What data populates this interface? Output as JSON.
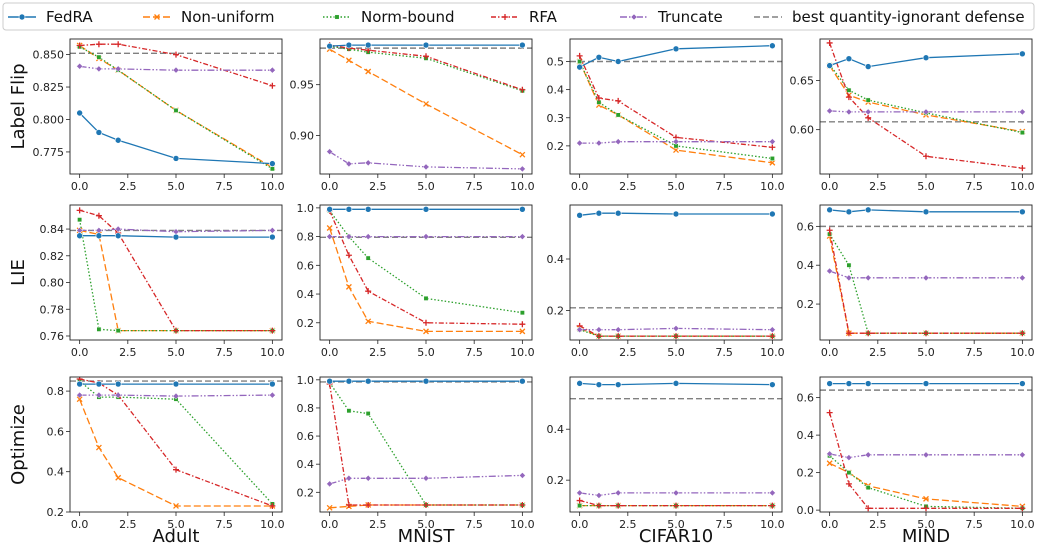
{
  "legend": {
    "entries": [
      {
        "label": "FedRA",
        "color": "#1f77b4",
        "dash": "",
        "marker": "circle"
      },
      {
        "label": "Non-uniform",
        "color": "#ff7f0e",
        "dash": "7,3",
        "marker": "x"
      },
      {
        "label": "Norm-bound",
        "color": "#2ca02c",
        "dash": "1.5,2",
        "marker": "square"
      },
      {
        "label": "RFA",
        "color": "#d62728",
        "dash": "5,2,1.5,2",
        "marker": "plus"
      },
      {
        "label": "Truncate",
        "color": "#9467bd",
        "dash": "7,2,1.5,2,1.5,2",
        "marker": "diamond"
      },
      {
        "label": "best quantity-ignorant defense",
        "color": "#808080",
        "dash": "6,3",
        "marker": "none"
      }
    ]
  },
  "row_labels": [
    "Label Flip",
    "LIE",
    "Optimize"
  ],
  "col_labels": [
    "Adult",
    "MNIST",
    "CIFAR10",
    "MIND"
  ],
  "chart_data": [
    {
      "type": "line",
      "row": "Label Flip",
      "col": "Adult",
      "x": [
        0,
        1,
        2,
        5,
        10
      ],
      "xticks": [
        "0.0",
        "2.5",
        "5.0",
        "7.5",
        "10.0"
      ],
      "xlim": [
        -0.5,
        10.5
      ],
      "ylim": [
        0.758,
        0.862
      ],
      "yticks": [
        0.775,
        0.8,
        0.825,
        0.85
      ],
      "ytick_labels": [
        "0.775",
        "0.800",
        "0.825",
        "0.850"
      ],
      "baseline": 0.851,
      "series": [
        {
          "name": "FedRA",
          "values": [
            0.805,
            0.79,
            0.784,
            0.77,
            0.766
          ]
        },
        {
          "name": "Non-uniform",
          "values": [
            0.857,
            0.847,
            0.838,
            0.807,
            0.763
          ]
        },
        {
          "name": "Norm-bound",
          "values": [
            0.856,
            0.848,
            0.838,
            0.807,
            0.762
          ]
        },
        {
          "name": "RFA",
          "values": [
            0.857,
            0.858,
            0.858,
            0.85,
            0.826
          ]
        },
        {
          "name": "Truncate",
          "values": [
            0.841,
            0.839,
            0.839,
            0.838,
            0.838
          ]
        }
      ]
    },
    {
      "type": "line",
      "row": "Label Flip",
      "col": "MNIST",
      "x": [
        0,
        1,
        2,
        5,
        10
      ],
      "xticks": [
        "0.0",
        "2.5",
        "5.0",
        "7.5",
        "10.0"
      ],
      "xlim": [
        -0.5,
        10.5
      ],
      "ylim": [
        0.862,
        0.995
      ],
      "yticks": [
        0.9,
        0.95
      ],
      "ytick_labels": [
        "0.90",
        "0.95"
      ],
      "baseline": 0.986,
      "series": [
        {
          "name": "FedRA",
          "values": [
            0.988,
            0.989,
            0.989,
            0.989,
            0.989
          ]
        },
        {
          "name": "Non-uniform",
          "values": [
            0.985,
            0.974,
            0.963,
            0.931,
            0.881
          ]
        },
        {
          "name": "Norm-bound",
          "values": [
            0.988,
            0.985,
            0.982,
            0.976,
            0.944
          ]
        },
        {
          "name": "RFA",
          "values": [
            0.989,
            0.986,
            0.984,
            0.978,
            0.945
          ]
        },
        {
          "name": "Truncate",
          "values": [
            0.884,
            0.872,
            0.873,
            0.869,
            0.867
          ]
        }
      ]
    },
    {
      "type": "line",
      "row": "Label Flip",
      "col": "CIFAR10",
      "x": [
        0,
        1,
        2,
        5,
        10
      ],
      "xticks": [
        "0.0",
        "2.5",
        "5.0",
        "7.5",
        "10.0"
      ],
      "xlim": [
        -0.5,
        10.5
      ],
      "ylim": [
        0.1,
        0.58
      ],
      "yticks": [
        0.2,
        0.3,
        0.4,
        0.5
      ],
      "ytick_labels": [
        "0.2",
        "0.3",
        "0.4",
        "0.5"
      ],
      "baseline": 0.5,
      "series": [
        {
          "name": "FedRA",
          "values": [
            0.48,
            0.515,
            0.5,
            0.545,
            0.556
          ]
        },
        {
          "name": "Non-uniform",
          "values": [
            0.5,
            0.345,
            0.31,
            0.185,
            0.14
          ]
        },
        {
          "name": "Norm-bound",
          "values": [
            0.5,
            0.355,
            0.31,
            0.2,
            0.155
          ]
        },
        {
          "name": "RFA",
          "values": [
            0.52,
            0.37,
            0.36,
            0.23,
            0.195
          ]
        },
        {
          "name": "Truncate",
          "values": [
            0.21,
            0.21,
            0.215,
            0.215,
            0.215
          ]
        }
      ]
    },
    {
      "type": "line",
      "row": "Label Flip",
      "col": "MIND",
      "x": [
        0,
        1,
        2,
        5,
        10
      ],
      "xticks": [
        "0.0",
        "2.5",
        "5.0",
        "7.5",
        "10.0"
      ],
      "xlim": [
        -0.5,
        10.5
      ],
      "ylim": [
        0.555,
        0.692
      ],
      "yticks": [
        0.6,
        0.65
      ],
      "ytick_labels": [
        "0.60",
        "0.65"
      ],
      "baseline": 0.608,
      "series": [
        {
          "name": "FedRA",
          "values": [
            0.665,
            0.672,
            0.664,
            0.673,
            0.677
          ]
        },
        {
          "name": "Non-uniform",
          "values": [
            0.665,
            0.635,
            0.628,
            0.615,
            0.598
          ]
        },
        {
          "name": "Norm-bound",
          "values": [
            0.666,
            0.64,
            0.63,
            0.617,
            0.597
          ]
        },
        {
          "name": "RFA",
          "values": [
            0.688,
            0.633,
            0.612,
            0.573,
            0.561
          ]
        },
        {
          "name": "Truncate",
          "values": [
            0.619,
            0.618,
            0.618,
            0.618,
            0.618
          ]
        }
      ]
    },
    {
      "type": "line",
      "row": "LIE",
      "col": "Adult",
      "x": [
        0,
        1,
        2,
        5,
        10
      ],
      "xticks": [
        "0.0",
        "2.5",
        "5.0",
        "7.5",
        "10.0"
      ],
      "xlim": [
        -0.5,
        10.5
      ],
      "ylim": [
        0.757,
        0.858
      ],
      "yticks": [
        0.76,
        0.78,
        0.8,
        0.82,
        0.84
      ],
      "ytick_labels": [
        "0.76",
        "0.78",
        "0.80",
        "0.82",
        "0.84"
      ],
      "baseline": 0.839,
      "series": [
        {
          "name": "FedRA",
          "values": [
            0.835,
            0.835,
            0.835,
            0.834,
            0.834
          ]
        },
        {
          "name": "Non-uniform",
          "values": [
            0.839,
            0.836,
            0.764,
            0.764,
            0.764
          ]
        },
        {
          "name": "Norm-bound",
          "values": [
            0.847,
            0.765,
            0.764,
            0.764,
            0.764
          ]
        },
        {
          "name": "RFA",
          "values": [
            0.854,
            0.85,
            0.837,
            0.764,
            0.764
          ]
        },
        {
          "name": "Truncate",
          "values": [
            0.839,
            0.839,
            0.84,
            0.838,
            0.839
          ]
        }
      ]
    },
    {
      "type": "line",
      "row": "LIE",
      "col": "MNIST",
      "x": [
        0,
        1,
        2,
        5,
        10
      ],
      "xticks": [
        "0.0",
        "2.5",
        "5.0",
        "7.5",
        "10.0"
      ],
      "xlim": [
        -0.5,
        10.5
      ],
      "ylim": [
        0.08,
        1.02
      ],
      "yticks": [
        0.2,
        0.4,
        0.6,
        0.8,
        1.0
      ],
      "ytick_labels": [
        "0.2",
        "0.4",
        "0.6",
        "0.8",
        "1.0"
      ],
      "baseline": 0.795,
      "series": [
        {
          "name": "FedRA",
          "values": [
            0.99,
            0.99,
            0.99,
            0.99,
            0.99
          ]
        },
        {
          "name": "Non-uniform",
          "values": [
            0.86,
            0.45,
            0.21,
            0.14,
            0.14
          ]
        },
        {
          "name": "Norm-bound",
          "values": [
            0.98,
            0.8,
            0.65,
            0.37,
            0.27
          ]
        },
        {
          "name": "RFA",
          "values": [
            0.98,
            0.67,
            0.42,
            0.2,
            0.19
          ]
        },
        {
          "name": "Truncate",
          "values": [
            0.8,
            0.8,
            0.8,
            0.8,
            0.8
          ]
        }
      ]
    },
    {
      "type": "line",
      "row": "LIE",
      "col": "CIFAR10",
      "x": [
        0,
        1,
        2,
        5,
        10
      ],
      "xticks": [
        "0.0",
        "2.5",
        "5.0",
        "7.5",
        "10.0"
      ],
      "xlim": [
        -0.5,
        10.5
      ],
      "ylim": [
        0.085,
        0.61
      ],
      "yticks": [
        0.2,
        0.4
      ],
      "ytick_labels": [
        "0.2",
        "0.4"
      ],
      "baseline": 0.21,
      "series": [
        {
          "name": "FedRA",
          "values": [
            0.57,
            0.578,
            0.578,
            0.575,
            0.575
          ]
        },
        {
          "name": "Non-uniform",
          "values": [
            0.13,
            0.1,
            0.1,
            0.1,
            0.1
          ]
        },
        {
          "name": "Norm-bound",
          "values": [
            0.125,
            0.1,
            0.1,
            0.1,
            0.1
          ]
        },
        {
          "name": "RFA",
          "values": [
            0.14,
            0.1,
            0.1,
            0.1,
            0.1
          ]
        },
        {
          "name": "Truncate",
          "values": [
            0.125,
            0.125,
            0.125,
            0.13,
            0.125
          ]
        }
      ]
    },
    {
      "type": "line",
      "row": "LIE",
      "col": "MIND",
      "x": [
        0,
        1,
        2,
        5,
        10
      ],
      "xticks": [
        "0.0",
        "2.5",
        "5.0",
        "7.5",
        "10.0"
      ],
      "xlim": [
        -0.5,
        10.5
      ],
      "ylim": [
        0.015,
        0.71
      ],
      "yticks": [
        0.2,
        0.4,
        0.6
      ],
      "ytick_labels": [
        "0.2",
        "0.4",
        "0.6"
      ],
      "baseline": 0.6,
      "series": [
        {
          "name": "FedRA",
          "values": [
            0.685,
            0.675,
            0.685,
            0.675,
            0.675
          ]
        },
        {
          "name": "Non-uniform",
          "values": [
            0.55,
            0.05,
            0.05,
            0.05,
            0.05
          ]
        },
        {
          "name": "Norm-bound",
          "values": [
            0.56,
            0.4,
            0.05,
            0.05,
            0.05
          ]
        },
        {
          "name": "RFA",
          "values": [
            0.58,
            0.05,
            0.05,
            0.05,
            0.05
          ]
        },
        {
          "name": "Truncate",
          "values": [
            0.37,
            0.335,
            0.335,
            0.335,
            0.335
          ]
        }
      ]
    },
    {
      "type": "line",
      "row": "Optimize",
      "col": "Adult",
      "x": [
        0,
        1,
        2,
        5,
        10
      ],
      "xticks": [
        "0.0",
        "2.5",
        "5.0",
        "7.5",
        "10.0"
      ],
      "xlim": [
        -0.5,
        10.5
      ],
      "ylim": [
        0.2,
        0.87
      ],
      "yticks": [
        0.2,
        0.4,
        0.6,
        0.8
      ],
      "ytick_labels": [
        "0.2",
        "0.4",
        "0.6",
        "0.8"
      ],
      "baseline": 0.85,
      "series": [
        {
          "name": "FedRA",
          "values": [
            0.835,
            0.835,
            0.835,
            0.835,
            0.835
          ]
        },
        {
          "name": "Non-uniform",
          "values": [
            0.76,
            0.52,
            0.37,
            0.23,
            0.23
          ]
        },
        {
          "name": "Norm-bound",
          "values": [
            0.85,
            0.77,
            0.77,
            0.76,
            0.24
          ]
        },
        {
          "name": "RFA",
          "values": [
            0.86,
            0.84,
            0.78,
            0.41,
            0.23
          ]
        },
        {
          "name": "Truncate",
          "values": [
            0.78,
            0.78,
            0.78,
            0.775,
            0.78
          ]
        }
      ]
    },
    {
      "type": "line",
      "row": "Optimize",
      "col": "MNIST",
      "x": [
        0,
        1,
        2,
        5,
        10
      ],
      "xticks": [
        "0.0",
        "2.5",
        "5.0",
        "7.5",
        "10.0"
      ],
      "xlim": [
        -0.5,
        10.5
      ],
      "ylim": [
        0.06,
        1.02
      ],
      "yticks": [
        0.2,
        0.4,
        0.6,
        0.8,
        1.0
      ],
      "ytick_labels": [
        "0.2",
        "0.4",
        "0.6",
        "0.8",
        "1.0"
      ],
      "baseline": 0.985,
      "series": [
        {
          "name": "FedRA",
          "values": [
            0.99,
            0.99,
            0.99,
            0.99,
            0.99
          ]
        },
        {
          "name": "Non-uniform",
          "values": [
            0.09,
            0.1,
            0.11,
            0.11,
            0.11
          ]
        },
        {
          "name": "Norm-bound",
          "values": [
            0.98,
            0.78,
            0.76,
            0.11,
            0.11
          ]
        },
        {
          "name": "RFA",
          "values": [
            0.97,
            0.11,
            0.11,
            0.11,
            0.11
          ]
        },
        {
          "name": "Truncate",
          "values": [
            0.26,
            0.3,
            0.3,
            0.3,
            0.32
          ]
        }
      ]
    },
    {
      "type": "line",
      "row": "Optimize",
      "col": "CIFAR10",
      "x": [
        0,
        1,
        2,
        5,
        10
      ],
      "xticks": [
        "0.0",
        "2.5",
        "5.0",
        "7.5",
        "10.0"
      ],
      "xlim": [
        -0.5,
        10.5
      ],
      "ylim": [
        0.075,
        0.605
      ],
      "yticks": [
        0.2,
        0.4
      ],
      "ytick_labels": [
        "0.2",
        "0.4"
      ],
      "baseline": 0.52,
      "series": [
        {
          "name": "FedRA",
          "values": [
            0.58,
            0.575,
            0.575,
            0.58,
            0.575
          ]
        },
        {
          "name": "Non-uniform",
          "values": [
            0.1,
            0.1,
            0.1,
            0.1,
            0.1
          ]
        },
        {
          "name": "Norm-bound",
          "values": [
            0.1,
            0.1,
            0.1,
            0.1,
            0.1
          ]
        },
        {
          "name": "RFA",
          "values": [
            0.12,
            0.1,
            0.1,
            0.1,
            0.1
          ]
        },
        {
          "name": "Truncate",
          "values": [
            0.15,
            0.14,
            0.15,
            0.15,
            0.15
          ]
        }
      ]
    },
    {
      "type": "line",
      "row": "Optimize",
      "col": "MIND",
      "x": [
        0,
        1,
        2,
        5,
        10
      ],
      "xticks": [
        "0.0",
        "2.5",
        "5.0",
        "7.5",
        "10.0"
      ],
      "xlim": [
        -0.5,
        10.5
      ],
      "ylim": [
        -0.01,
        0.71
      ],
      "yticks": [
        0.0,
        0.2,
        0.4,
        0.6
      ],
      "ytick_labels": [
        "0.0",
        "0.2",
        "0.4",
        "0.6"
      ],
      "baseline": 0.64,
      "series": [
        {
          "name": "FedRA",
          "values": [
            0.675,
            0.675,
            0.675,
            0.675,
            0.675
          ]
        },
        {
          "name": "Non-uniform",
          "values": [
            0.25,
            0.2,
            0.13,
            0.06,
            0.02
          ]
        },
        {
          "name": "Norm-bound",
          "values": [
            0.29,
            0.2,
            0.12,
            0.02,
            0.01
          ]
        },
        {
          "name": "RFA",
          "values": [
            0.52,
            0.14,
            0.01,
            0.01,
            0.01
          ]
        },
        {
          "name": "Truncate",
          "values": [
            0.3,
            0.28,
            0.295,
            0.295,
            0.295
          ]
        }
      ]
    }
  ]
}
